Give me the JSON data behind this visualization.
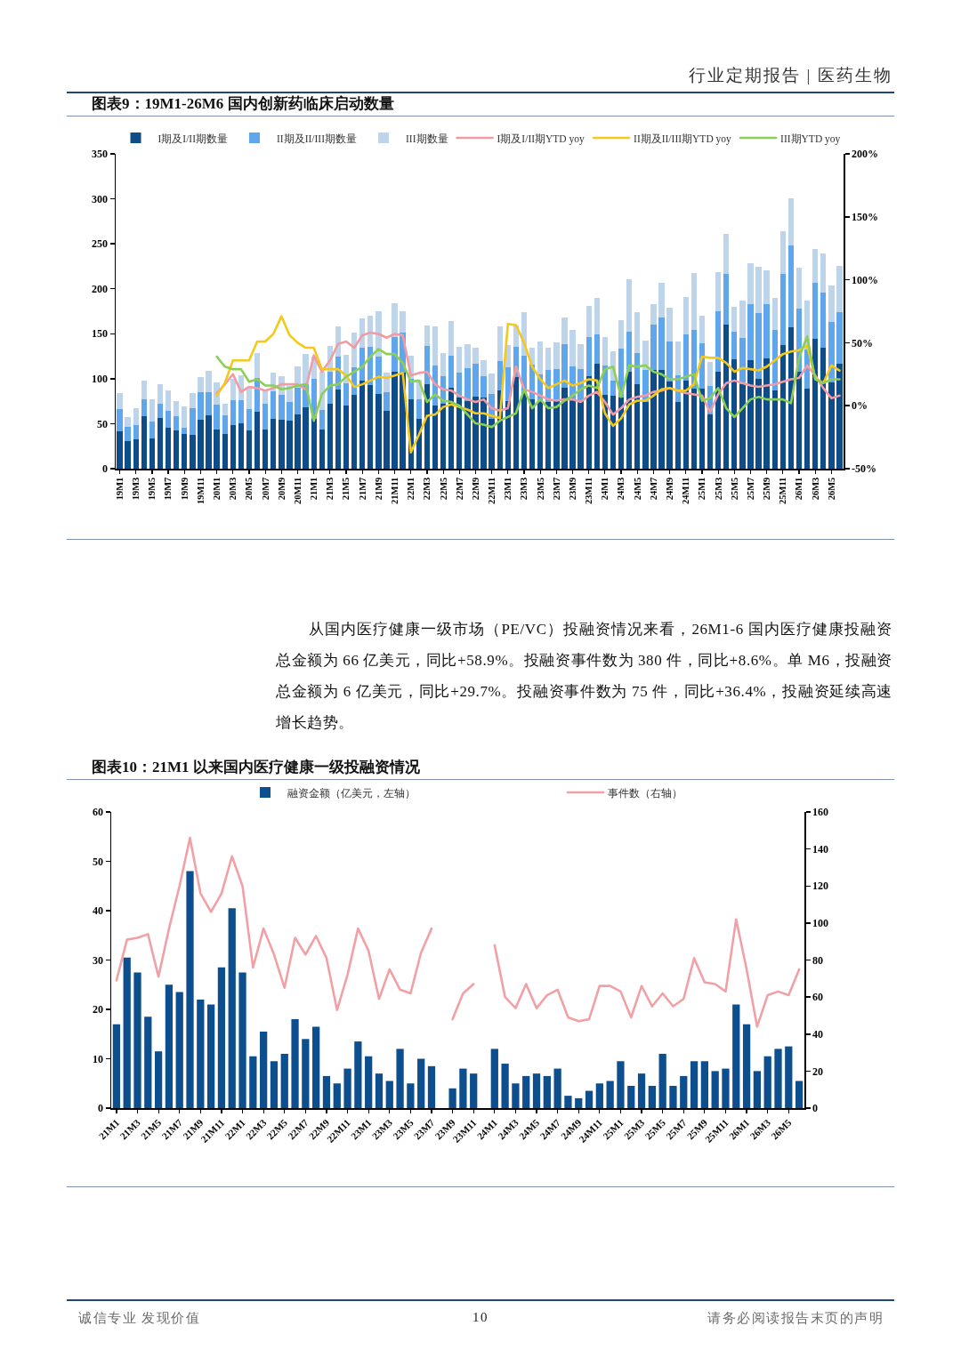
{
  "chart_data": [
    {
      "type": "other",
      "annotations": [
        "行业定期报告 | 医药生物"
      ]
    },
    {
      "type": "bar",
      "stacked": true,
      "title": "图表9：19M1-26M6 国内创新药临床启动数量",
      "legend": "top",
      "categories": [
        "19M1",
        null,
        "19M3",
        null,
        "19M5",
        null,
        "19M7",
        null,
        "19M9",
        null,
        "19M11",
        null,
        "20M1",
        null,
        "20M3",
        null,
        "20M5",
        null,
        "20M7",
        null,
        "20M9",
        null,
        "20M11",
        null,
        "21M1",
        null,
        "21M3",
        null,
        "21M5",
        null,
        "21M7",
        null,
        "21M9",
        null,
        "21M11",
        null,
        "22M1",
        null,
        "22M3",
        null,
        "22M5",
        null,
        "22M7",
        null,
        "22M9",
        null,
        "22M11",
        null,
        "23M1",
        null,
        "23M3",
        null,
        "23M5",
        null,
        "23M7",
        null,
        "23M9",
        null,
        "23M11",
        null,
        "24M1",
        null,
        "24M3",
        null,
        "24M5",
        null,
        "24M7",
        null,
        "24M9",
        null,
        "24M11",
        null,
        "25M1",
        null,
        "25M3",
        null,
        "25M5",
        null,
        "25M7",
        null,
        "25M9",
        null,
        "25M11",
        null,
        "26M1",
        null,
        "26M3",
        null,
        "26M5",
        null
      ],
      "series": [
        {
          "name": "I期及I/II期数量",
          "color": "#0f4c8a",
          "values": [
            42,
            31,
            33,
            58,
            34,
            56,
            45,
            43,
            39,
            38,
            54,
            59,
            44,
            39,
            48,
            50,
            43,
            63,
            44,
            55,
            54,
            53,
            60,
            68,
            55,
            44,
            72,
            88,
            70,
            82,
            98,
            93,
            83,
            64,
            108,
            107,
            77,
            55,
            94,
            70,
            72,
            90,
            79,
            75,
            80,
            79,
            55,
            87,
            75,
            102,
            85,
            77,
            75,
            74,
            75,
            90,
            77,
            75,
            103,
            117,
            82,
            81,
            79,
            108,
            94,
            74,
            110,
            110,
            97,
            74,
            98,
            89,
            89,
            60,
            108,
            160,
            122,
            94,
            121,
            100,
            123,
            87,
            137,
            157,
            108,
            89,
            144,
            134,
            96,
            117
          ]
        },
        {
          "name": "II期及II/III期数量",
          "color": "#5fa6ec",
          "values": [
            24,
            15,
            15,
            19,
            18,
            16,
            19,
            15,
            6,
            29,
            31,
            26,
            27,
            20,
            28,
            26,
            23,
            38,
            28,
            31,
            28,
            21,
            30,
            26,
            45,
            21,
            36,
            37,
            25,
            31,
            36,
            42,
            42,
            21,
            38,
            44,
            23,
            22,
            42,
            45,
            31,
            36,
            28,
            37,
            37,
            24,
            28,
            33,
            38,
            33,
            41,
            39,
            30,
            36,
            36,
            48,
            37,
            36,
            43,
            32,
            33,
            17,
            54,
            44,
            35,
            36,
            50,
            58,
            44,
            30,
            51,
            65,
            50,
            32,
            67,
            57,
            30,
            51,
            62,
            73,
            60,
            67,
            80,
            91,
            70,
            43,
            63,
            62,
            67,
            57
          ]
        },
        {
          "name": "III期数量",
          "color": "#bed4ea",
          "values": [
            18,
            11,
            19,
            21,
            25,
            22,
            23,
            17,
            24,
            17,
            17,
            24,
            25,
            13,
            24,
            28,
            24,
            28,
            16,
            21,
            21,
            18,
            24,
            34,
            25,
            43,
            28,
            33,
            32,
            38,
            33,
            35,
            50,
            22,
            38,
            24,
            26,
            22,
            23,
            43,
            26,
            38,
            28,
            26,
            17,
            18,
            23,
            38,
            24,
            24,
            48,
            18,
            36,
            24,
            29,
            30,
            40,
            27,
            35,
            41,
            31,
            33,
            32,
            59,
            45,
            32,
            23,
            39,
            38,
            37,
            42,
            64,
            31,
            27,
            44,
            44,
            28,
            42,
            45,
            51,
            37,
            36,
            47,
            53,
            45,
            55,
            37,
            43,
            41,
            51
          ]
        },
        {
          "name": "I期及I/II期YTD yoy",
          "type": "line",
          "axis": "y2",
          "color": "#f29ba4",
          "values": [
            null,
            null,
            null,
            null,
            null,
            null,
            null,
            null,
            null,
            null,
            null,
            null,
            10,
            17,
            25,
            11,
            15,
            14,
            12,
            14,
            17,
            17,
            17,
            13,
            40,
            27,
            36,
            49,
            51,
            46,
            56,
            58,
            57,
            54,
            57,
            56,
            24,
            26,
            27,
            17,
            13,
            12,
            8,
            5,
            3,
            5,
            -2,
            -4,
            -2,
            31,
            13,
            11,
            8,
            5,
            4,
            5,
            5,
            3,
            8,
            11,
            3,
            -7,
            -2,
            5,
            7,
            8,
            11,
            12,
            14,
            12,
            10,
            9,
            8,
            -5,
            9,
            18,
            20,
            18,
            16,
            15,
            16,
            17,
            19,
            21,
            22,
            32,
            24,
            14,
            6,
            8
          ]
        },
        {
          "name": "II期及II/III期YTD yoy",
          "type": "line",
          "axis": "y2",
          "color": "#f6c81a",
          "values": [
            null,
            null,
            null,
            null,
            null,
            null,
            null,
            null,
            null,
            null,
            null,
            null,
            8,
            18,
            36,
            36,
            36,
            51,
            51,
            57,
            71,
            56,
            50,
            46,
            46,
            29,
            29,
            29,
            24,
            15,
            17,
            20,
            23,
            22,
            24,
            26,
            -37,
            -23,
            -8,
            -7,
            -1,
            1,
            -1,
            -3,
            -6,
            -6,
            -8,
            -10,
            65,
            64,
            50,
            31,
            21,
            14,
            17,
            20,
            16,
            18,
            21,
            20,
            -6,
            -16,
            -10,
            1,
            4,
            4,
            8,
            13,
            14,
            12,
            12,
            17,
            39,
            38,
            38,
            34,
            27,
            30,
            29,
            28,
            31,
            36,
            41,
            43,
            44,
            48,
            22,
            18,
            32,
            28
          ]
        },
        {
          "name": "III期YTD yoy",
          "type": "line",
          "axis": "y2",
          "color": "#8bcf55",
          "values": [
            null,
            null,
            null,
            null,
            null,
            null,
            null,
            null,
            null,
            null,
            null,
            null,
            39,
            31,
            29,
            29,
            19,
            21,
            16,
            16,
            13,
            14,
            16,
            17,
            -12,
            9,
            16,
            17,
            23,
            27,
            31,
            39,
            45,
            41,
            41,
            34,
            19,
            20,
            3,
            9,
            4,
            3,
            0,
            -7,
            -14,
            -15,
            -17,
            -12,
            -9,
            -6,
            13,
            -2,
            5,
            -2,
            -1,
            4,
            8,
            13,
            16,
            14,
            29,
            31,
            7,
            32,
            31,
            32,
            27,
            25,
            21,
            21,
            23,
            25,
            4,
            6,
            14,
            -2,
            -9,
            -2,
            5,
            7,
            5,
            5,
            5,
            2,
            38,
            55,
            21,
            18,
            21,
            21
          ]
        }
      ],
      "ylim": [
        0,
        350
      ],
      "yticks": [
        0,
        50,
        100,
        150,
        200,
        250,
        300,
        350
      ],
      "y2lim": [
        -50,
        200
      ],
      "y2ticks": [
        {
          "value": -50,
          "label": "-50%"
        },
        {
          "value": 0,
          "label": "0%"
        },
        {
          "value": 50,
          "label": "50%"
        },
        {
          "value": 100,
          "label": "100%"
        },
        {
          "value": 150,
          "label": "150%"
        },
        {
          "value": 200,
          "label": "200%"
        }
      ]
    },
    {
      "type": "other",
      "annotations": [
        "从国内医疗健康一级市场（PE/VC）投融资情况来看，26M1-6 国内医疗健康投融资总金额为 66 亿美元，同比+58.9%。投融资事件数为 380 件，同比+8.6%。单 M6，投融资总金额为 6 亿美元，同比+29.7%。投融资事件数为 75 件，同比+36.4%，投融资延续高速增长趋势。"
      ]
    },
    {
      "type": "bar",
      "title": "图表10：21M1 以来国内医疗健康一级投融资情况",
      "legend": "top",
      "categories": [
        "21M1",
        null,
        "21M3",
        null,
        "21M5",
        null,
        "21M7",
        null,
        "21M9",
        null,
        "21M11",
        null,
        "22M1",
        null,
        "22M3",
        null,
        "22M5",
        null,
        "22M7",
        null,
        "22M9",
        null,
        "22M11",
        null,
        "23M1",
        null,
        "23M3",
        null,
        "23M5",
        null,
        "23M7",
        null,
        "23M9",
        null,
        "23M11",
        null,
        "24M1",
        null,
        "24M3",
        null,
        "24M5",
        null,
        "24M7",
        null,
        "24M9",
        null,
        "24M11",
        null,
        "25M1",
        null,
        "25M3",
        null,
        "25M5",
        null,
        "25M7",
        null,
        "25M9",
        null,
        "25M11",
        null,
        "26M1",
        null,
        "26M3",
        null,
        "26M5",
        null
      ],
      "series": [
        {
          "name": "融资金额（亿美元，左轴）",
          "color": "#0c4e8e",
          "values": [
            17,
            30.5,
            27.5,
            18.5,
            11.5,
            25,
            23.5,
            48,
            22,
            21,
            28.5,
            40.5,
            27.5,
            10.5,
            15.5,
            9.5,
            11,
            18,
            14,
            16.5,
            6.5,
            5,
            8,
            13.5,
            10.5,
            7,
            5.5,
            12,
            5,
            10,
            8.5,
            null,
            4,
            8,
            7,
            null,
            12,
            9,
            5,
            6.5,
            7,
            6.5,
            8,
            2.5,
            2,
            3.5,
            5,
            5.5,
            9.5,
            4.5,
            7,
            4.5,
            11,
            4.5,
            6.5,
            9.5,
            9.5,
            7.5,
            8,
            21,
            17,
            7.5,
            10.5,
            12,
            12.5,
            5.5
          ]
        },
        {
          "name": "事件数（右轴）",
          "type": "line",
          "axis": "y2",
          "color": "#f1a1a6",
          "values": [
            69,
            91,
            92,
            94,
            71,
            97,
            120,
            146,
            116,
            106,
            116,
            136,
            120,
            76,
            97,
            83,
            65,
            92,
            83,
            93,
            81,
            53,
            72,
            97,
            85,
            59,
            75,
            64,
            62,
            84,
            97,
            null,
            48,
            62,
            67,
            null,
            88,
            60,
            54,
            67,
            54,
            61,
            64,
            49,
            47,
            48,
            66,
            66,
            63,
            49,
            66,
            55,
            62,
            55,
            59,
            81,
            68,
            67,
            63,
            102,
            75,
            44,
            61,
            63,
            61,
            75
          ]
        }
      ],
      "ylim": [
        0,
        60
      ],
      "yticks": [
        0,
        10,
        20,
        30,
        40,
        50,
        60
      ],
      "y2lim": [
        0,
        160
      ],
      "y2ticks": [
        0,
        20,
        40,
        60,
        80,
        100,
        120,
        140,
        160
      ]
    },
    {
      "type": "other",
      "annotations": [
        "诚信专业 发现价值",
        "10",
        "请务必阅读报告末页的声明"
      ]
    }
  ]
}
